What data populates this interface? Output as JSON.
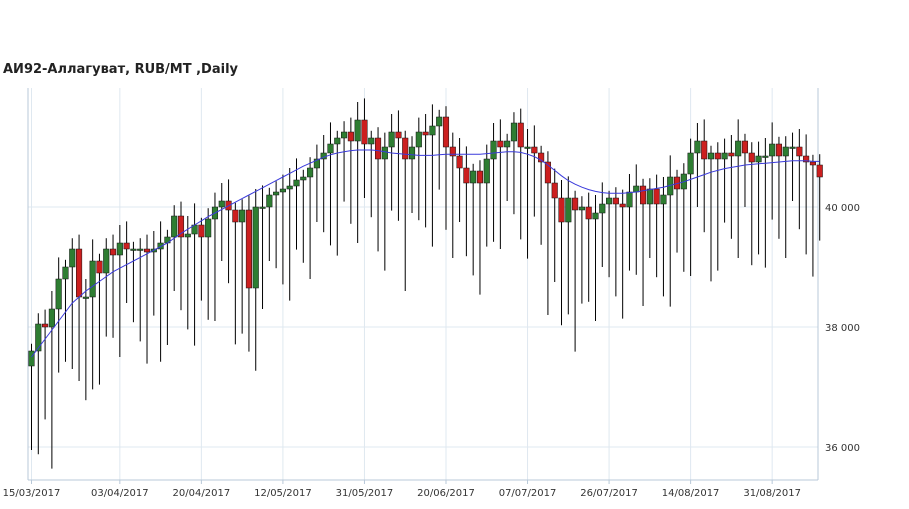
{
  "chart_data": {
    "type": "candlestick",
    "title": "АИ92-Аллагуват,  RUB/MT ,Daily",
    "ylim": [
      35500,
      42000
    ],
    "y_ticks": [
      "36 000",
      "38 000",
      "40 000"
    ],
    "y_tick_values": [
      36000,
      38000,
      40000
    ],
    "x_tick_labels": [
      "15/03/2017",
      "03/04/2017",
      "20/04/2017",
      "12/05/2017",
      "31/05/2017",
      "20/06/2017",
      "07/07/2017",
      "26/07/2017",
      "14/08/2017",
      "31/08/2017"
    ],
    "x_tick_index": [
      0,
      13,
      25,
      37,
      49,
      61,
      73,
      85,
      97,
      109
    ],
    "grid": true,
    "colors": {
      "up": "#2e7d32",
      "down": "#cc1f1f",
      "wick": "#000000",
      "ma": "#3a3adb",
      "grid": "#dfe8f0",
      "axis": "#b8c8d8"
    },
    "closes": [
      37600,
      38050,
      38000,
      38300,
      38800,
      39000,
      39300,
      38500,
      38500,
      39100,
      38900,
      39300,
      39200,
      39400,
      39300,
      39300,
      39300,
      39250,
      39300,
      39400,
      39500,
      39850,
      39500,
      39550,
      39700,
      39500,
      39800,
      40000,
      40100,
      39950,
      39750,
      39950,
      38650,
      40000,
      40000,
      40200,
      40250,
      40300,
      40350,
      40450,
      40500,
      40650,
      40800,
      40900,
      41050,
      41150,
      41250,
      41100,
      41450,
      41050,
      41150,
      40800,
      41000,
      41250,
      41150,
      40800,
      41000,
      41250,
      41200,
      41350,
      41500,
      41000,
      40850,
      40650,
      40400,
      40600,
      40400,
      40800,
      41100,
      41000,
      41100,
      41400,
      41000,
      41000,
      40900,
      40750,
      40400,
      40150,
      39750,
      40150,
      39950,
      40000,
      39800,
      39900,
      40050,
      40150,
      40050,
      40000,
      40250,
      40350,
      40050,
      40300,
      40050,
      40200,
      40500,
      40300,
      40550,
      40900,
      41100,
      40800,
      40900,
      40800,
      40900,
      40850,
      41100,
      40900,
      40750,
      40850,
      40850,
      41050,
      40850,
      41000,
      41000,
      40850,
      40750,
      40700,
      40500
    ],
    "ma_values": [
      37500,
      37650,
      37800,
      37950,
      38100,
      38250,
      38400,
      38500,
      38600,
      38680,
      38760,
      38840,
      38920,
      38980,
      39040,
      39100,
      39160,
      39220,
      39280,
      39340,
      39400,
      39480,
      39560,
      39630,
      39700,
      39770,
      39840,
      39900,
      39960,
      40020,
      40080,
      40140,
      40200,
      40260,
      40320,
      40380,
      40440,
      40500,
      40560,
      40620,
      40680,
      40730,
      40780,
      40830,
      40870,
      40900,
      40920,
      40940,
      40950,
      40950,
      40950,
      40940,
      40920,
      40900,
      40890,
      40880,
      40870,
      40860,
      40860,
      40860,
      40870,
      40880,
      40880,
      40880,
      40880,
      40880,
      40880,
      40890,
      40900,
      40910,
      40920,
      40920,
      40910,
      40880,
      40840,
      40780,
      40700,
      40610,
      40520,
      40440,
      40380,
      40330,
      40290,
      40260,
      40240,
      40230,
      40230,
      40230,
      40240,
      40250,
      40270,
      40290,
      40310,
      40330,
      40360,
      40390,
      40420,
      40460,
      40500,
      40540,
      40580,
      40610,
      40640,
      40660,
      40680,
      40700,
      40710,
      40720,
      40730,
      40740,
      40750,
      40760,
      40770,
      40770,
      40770,
      40760,
      40760
    ]
  }
}
